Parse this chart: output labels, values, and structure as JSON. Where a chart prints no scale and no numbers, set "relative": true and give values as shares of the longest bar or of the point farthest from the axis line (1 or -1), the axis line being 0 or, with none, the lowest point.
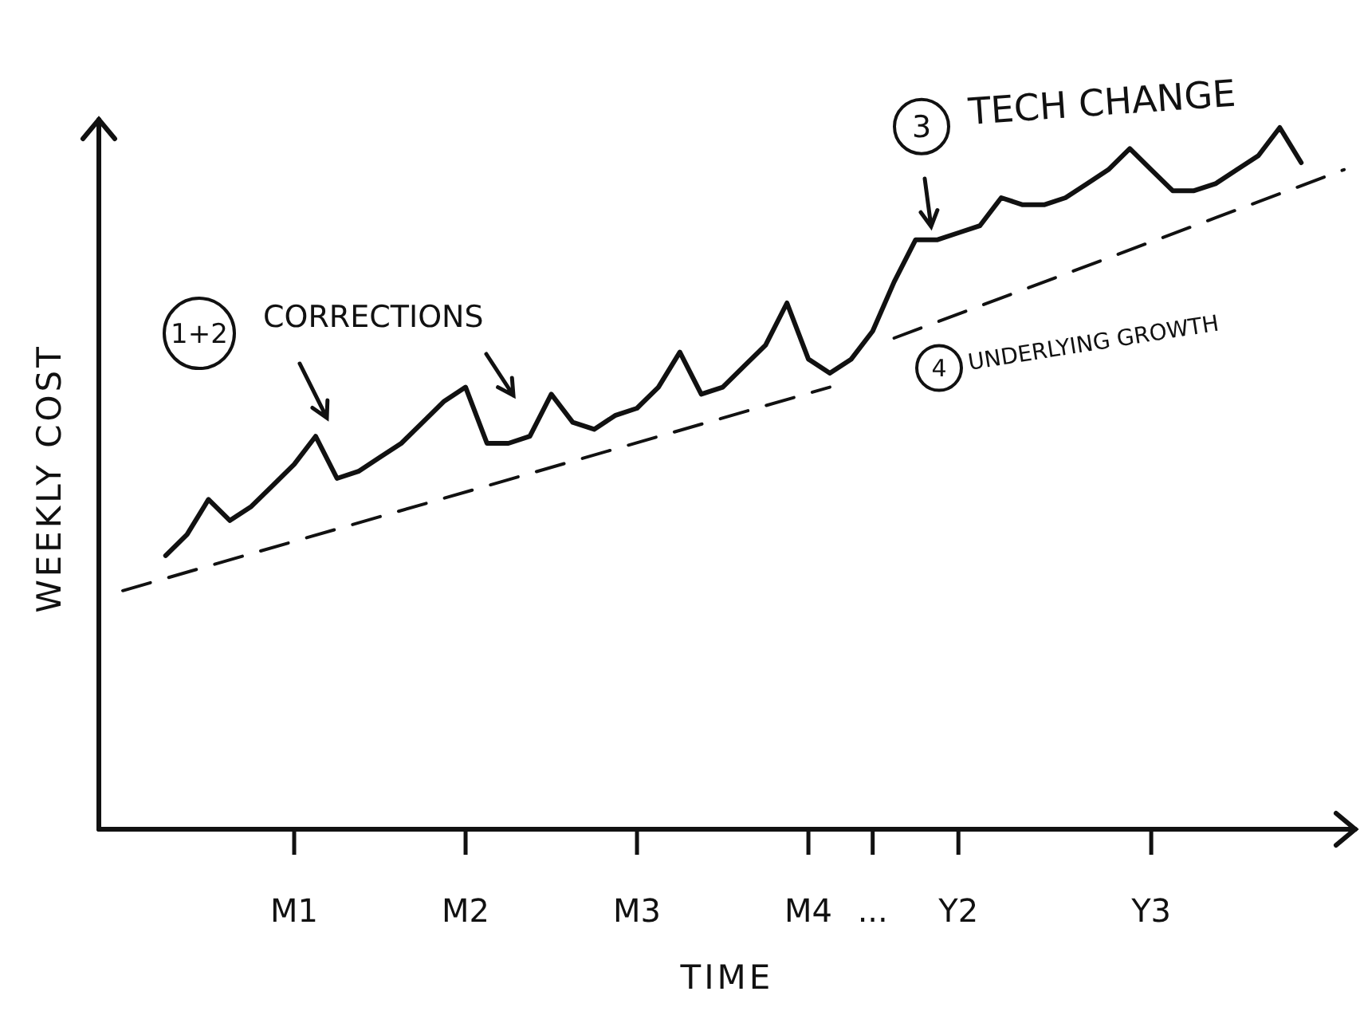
{
  "chart_data": {
    "type": "line",
    "relative": true,
    "xlabel": "TIME",
    "ylabel": "WEEKLY COST",
    "grid": false,
    "categories": [
      null,
      null,
      null,
      null,
      null,
      null,
      null,
      null,
      "M1",
      null,
      null,
      null,
      null,
      null,
      null,
      null,
      "M2",
      null,
      null,
      null,
      null,
      null,
      null,
      null,
      "M3",
      null,
      null,
      null,
      null,
      null,
      null,
      null,
      "M4",
      null,
      null,
      "...",
      null,
      null,
      null,
      "Y2",
      null,
      null,
      null,
      null,
      null,
      null,
      null,
      null,
      "Y3",
      null,
      null,
      null,
      null,
      null,
      null,
      null,
      null,
      null
    ],
    "annotations": [
      "1+2",
      "CORRECTIONS",
      "3",
      "TECH CHANGE",
      "4",
      "UNDERLYING GROWTH"
    ],
    "series": [
      {
        "color": "#111111",
        "line_style": "solid",
        "values": [
          null,
          null,
          0.39,
          0.42,
          0.47,
          0.44,
          0.46,
          0.49,
          0.52,
          0.56,
          0.5,
          0.51,
          0.53,
          0.55,
          0.58,
          0.61,
          0.63,
          0.55,
          0.55,
          0.56,
          0.62,
          0.58,
          0.57,
          0.59,
          0.6,
          0.63,
          0.68,
          0.62,
          0.63,
          0.66,
          0.69,
          0.75,
          0.67,
          0.65,
          0.67,
          0.71,
          0.78,
          0.84,
          0.84,
          0.85,
          0.86,
          0.9,
          0.89,
          0.89,
          0.9,
          0.92,
          0.94,
          0.97,
          0.94,
          0.91,
          0.91,
          0.92,
          0.94,
          0.96,
          1.0,
          0.95,
          null,
          null
        ]
      },
      {
        "color": "#111111",
        "line_style": "dashed",
        "values": [
          0.34,
          null,
          null,
          null,
          null,
          null,
          null,
          null,
          null,
          null,
          null,
          null,
          null,
          null,
          null,
          null,
          null,
          null,
          null,
          null,
          null,
          null,
          null,
          null,
          null,
          null,
          null,
          null,
          null,
          null,
          null,
          null,
          null,
          0.63,
          null,
          null,
          null,
          null,
          null,
          null,
          null,
          null,
          null,
          null,
          null,
          null,
          null,
          null,
          null,
          null,
          null,
          null,
          null,
          null,
          null,
          null,
          null,
          null
        ]
      },
      {
        "color": "#111111",
        "line_style": "dashed",
        "values": [
          null,
          null,
          null,
          null,
          null,
          null,
          null,
          null,
          null,
          null,
          null,
          null,
          null,
          null,
          null,
          null,
          null,
          null,
          null,
          null,
          null,
          null,
          null,
          null,
          null,
          null,
          null,
          null,
          null,
          null,
          null,
          null,
          null,
          null,
          null,
          null,
          0.7,
          null,
          null,
          null,
          null,
          null,
          null,
          null,
          null,
          null,
          null,
          null,
          null,
          null,
          null,
          null,
          null,
          null,
          null,
          null,
          null,
          0.94
        ]
      }
    ]
  }
}
